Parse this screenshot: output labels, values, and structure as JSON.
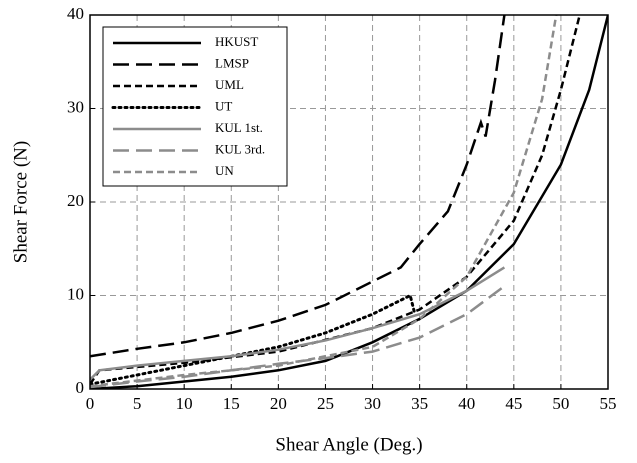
{
  "chart_data": {
    "type": "line",
    "xlabel": "Shear Angle (Deg.)",
    "ylabel": "Shear Force (N)",
    "xlim": [
      0,
      55
    ],
    "xticks": [
      0,
      5,
      10,
      15,
      20,
      25,
      30,
      35,
      40,
      45,
      50,
      55
    ],
    "ylim": [
      0,
      40
    ],
    "yticks": [
      0,
      10,
      20,
      30,
      40
    ],
    "grid": true,
    "legend": "upper left",
    "series": [
      {
        "name": "HKUST",
        "color": "#000000",
        "dash": "solid",
        "x": [
          0,
          5,
          10,
          15,
          20,
          25,
          30,
          35,
          40,
          45,
          50,
          53,
          55
        ],
        "values": [
          0,
          0.3,
          0.8,
          1.3,
          2,
          3,
          5,
          7.5,
          10.5,
          15.5,
          24,
          32,
          40
        ]
      },
      {
        "name": "LMSP",
        "color": "#000000",
        "dash": "long",
        "x": [
          0,
          5,
          10,
          15,
          20,
          25,
          30,
          33,
          35,
          38,
          40,
          41.5,
          42,
          43,
          44
        ],
        "values": [
          3.5,
          4.3,
          5,
          6,
          7.3,
          9,
          11.5,
          13,
          15.5,
          19,
          24,
          28.5,
          27,
          33,
          40
        ]
      },
      {
        "name": "UML",
        "color": "#000000",
        "dash": "short",
        "x": [
          0,
          1,
          10,
          20,
          30,
          35,
          40,
          45,
          48,
          50,
          52
        ],
        "values": [
          0.5,
          2,
          2.8,
          4,
          6.5,
          8.5,
          12,
          18,
          25,
          32,
          40
        ]
      },
      {
        "name": "UT",
        "color": "#000000",
        "dash": "dot",
        "x": [
          0,
          5,
          10,
          15,
          20,
          25,
          30,
          33,
          34,
          34.5
        ],
        "values": [
          0.5,
          1.5,
          2.5,
          3.5,
          4.5,
          6,
          8,
          9.5,
          10,
          8
        ]
      },
      {
        "name": "KUL 1st.",
        "color": "#8c8c8c",
        "dash": "solid",
        "x": [
          0,
          1,
          5,
          10,
          15,
          20,
          25,
          30,
          35,
          40,
          44
        ],
        "values": [
          1,
          2,
          2.5,
          3,
          3.5,
          4.2,
          5.2,
          6.5,
          8,
          10.5,
          13
        ]
      },
      {
        "name": "KUL 3rd.",
        "color": "#8c8c8c",
        "dash": "long",
        "x": [
          0,
          5,
          10,
          15,
          20,
          25,
          30,
          35,
          40,
          44
        ],
        "values": [
          0.2,
          0.8,
          1.3,
          2,
          2.7,
          3.3,
          4,
          5.5,
          8,
          11
        ]
      },
      {
        "name": "UN",
        "color": "#8c8c8c",
        "dash": "short",
        "x": [
          0,
          10,
          20,
          30,
          35,
          40,
          45,
          48,
          49.5
        ],
        "values": [
          0.3,
          1.5,
          2.5,
          4.5,
          7.5,
          12,
          21,
          31,
          40
        ]
      }
    ]
  }
}
